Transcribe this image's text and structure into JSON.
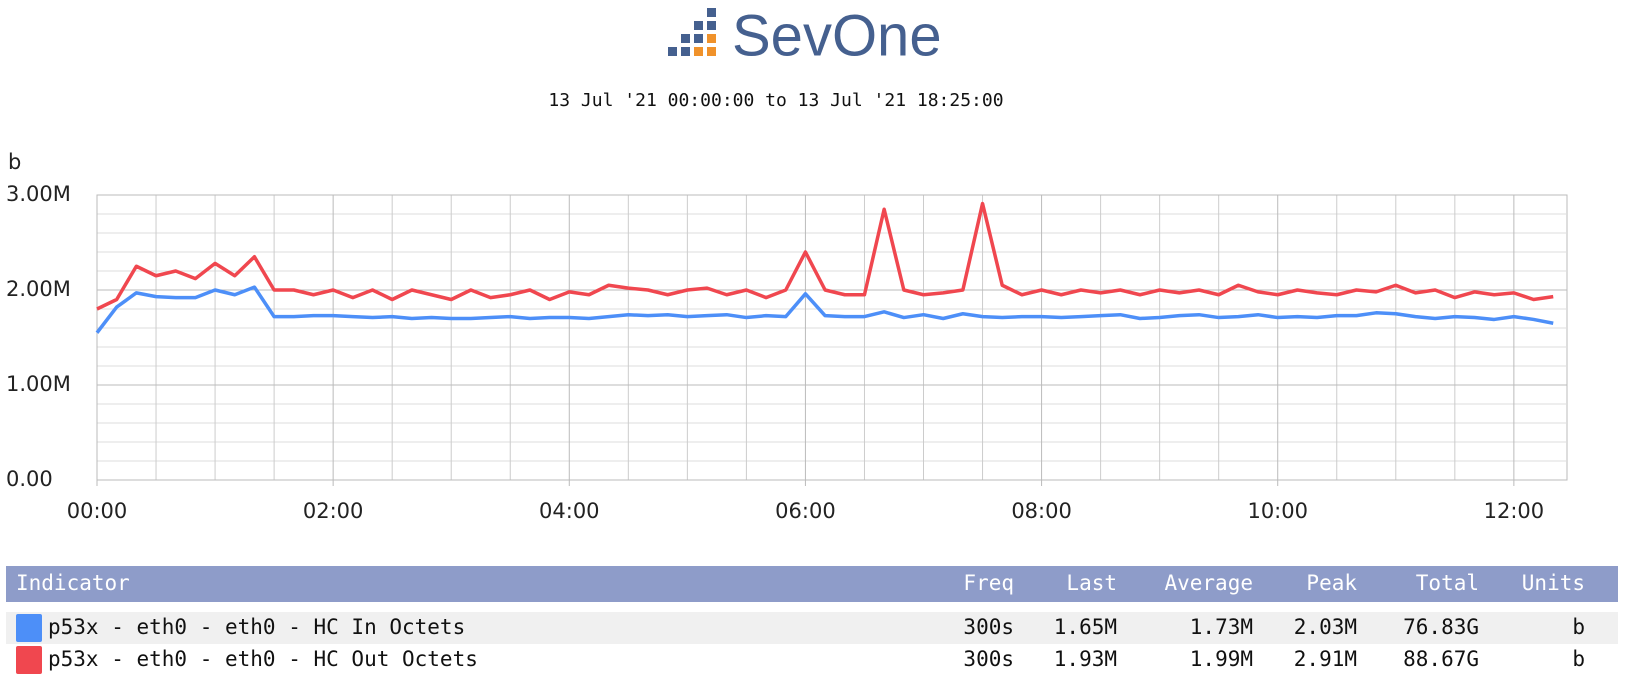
{
  "chart_data": {
    "type": "line",
    "title": "SevOne",
    "subtitle": "13 Jul '21 00:00:00 to 13 Jul '21 18:25:00",
    "y_label": "b",
    "x": [
      0,
      10,
      20,
      30,
      40,
      50,
      60,
      70,
      80,
      90,
      100,
      110,
      120,
      130,
      140,
      150,
      160,
      170,
      180,
      190,
      200,
      210,
      220,
      230,
      240,
      250,
      260,
      270,
      280,
      290,
      300,
      310,
      320,
      330,
      340,
      350,
      360,
      370,
      380,
      390,
      400,
      410,
      420,
      430,
      440,
      450,
      460,
      470,
      480,
      490,
      500,
      510,
      520,
      530,
      540,
      550,
      560,
      570,
      580,
      590,
      600,
      610,
      620,
      630,
      640,
      650,
      660,
      670,
      680,
      690,
      700,
      710,
      720,
      730,
      740
    ],
    "xlim": [
      0,
      747
    ],
    "xticks": [
      {
        "value": 0,
        "label": "00:00"
      },
      {
        "value": 120,
        "label": "02:00"
      },
      {
        "value": 240,
        "label": "04:00"
      },
      {
        "value": 360,
        "label": "06:00"
      },
      {
        "value": 480,
        "label": "08:00"
      },
      {
        "value": 600,
        "label": "10:00"
      },
      {
        "value": 720,
        "label": "12:00"
      }
    ],
    "x_minor_ticks": [
      30,
      60,
      90,
      150,
      180,
      210,
      270,
      300,
      330,
      390,
      420,
      450,
      510,
      540,
      570,
      630,
      660,
      690
    ],
    "ylim": [
      0,
      3000000
    ],
    "yticks": [
      {
        "value": 0,
        "label": "0.00"
      },
      {
        "value": 1000000,
        "label": "1.00M"
      },
      {
        "value": 2000000,
        "label": "2.00M"
      },
      {
        "value": 3000000,
        "label": "3.00M"
      }
    ],
    "y_minor_ticks": [
      200000,
      400000,
      600000,
      800000,
      1200000,
      1400000,
      1600000,
      1800000,
      2200000,
      2400000,
      2600000,
      2800000
    ],
    "grid": true,
    "series": [
      {
        "name": "p53x - eth0 - eth0 - HC In Octets",
        "color": "#4d8ff8",
        "values": [
          1550000,
          1820000,
          1970000,
          1930000,
          1920000,
          1920000,
          2000000,
          1950000,
          2030000,
          1720000,
          1720000,
          1730000,
          1730000,
          1720000,
          1710000,
          1720000,
          1700000,
          1710000,
          1700000,
          1700000,
          1710000,
          1720000,
          1700000,
          1710000,
          1710000,
          1700000,
          1720000,
          1740000,
          1730000,
          1740000,
          1720000,
          1730000,
          1740000,
          1710000,
          1730000,
          1720000,
          1960000,
          1730000,
          1720000,
          1720000,
          1770000,
          1710000,
          1740000,
          1700000,
          1750000,
          1720000,
          1710000,
          1720000,
          1720000,
          1710000,
          1720000,
          1730000,
          1740000,
          1700000,
          1710000,
          1730000,
          1740000,
          1710000,
          1720000,
          1740000,
          1710000,
          1720000,
          1710000,
          1730000,
          1730000,
          1760000,
          1750000,
          1720000,
          1700000,
          1720000,
          1710000,
          1690000,
          1720000,
          1690000,
          1650000
        ],
        "stats": [
          "300s",
          "1.65M",
          "1.73M",
          "2.03M",
          "76.83G",
          "b"
        ]
      },
      {
        "name": "p53x - eth0 - eth0 - HC Out Octets",
        "color": "#f0474f",
        "values": [
          1800000,
          1900000,
          2250000,
          2150000,
          2200000,
          2120000,
          2280000,
          2150000,
          2350000,
          2000000,
          2000000,
          1950000,
          2000000,
          1920000,
          2000000,
          1900000,
          2000000,
          1950000,
          1900000,
          2000000,
          1920000,
          1950000,
          2000000,
          1900000,
          1980000,
          1950000,
          2050000,
          2020000,
          2000000,
          1950000,
          2000000,
          2020000,
          1950000,
          2000000,
          1920000,
          2000000,
          2400000,
          2000000,
          1950000,
          1950000,
          2850000,
          2000000,
          1950000,
          1970000,
          2000000,
          2910000,
          2050000,
          1950000,
          2000000,
          1950000,
          2000000,
          1970000,
          2000000,
          1950000,
          2000000,
          1970000,
          2000000,
          1950000,
          2050000,
          1980000,
          1950000,
          2000000,
          1970000,
          1950000,
          2000000,
          1980000,
          2050000,
          1970000,
          2000000,
          1920000,
          1980000,
          1950000,
          1970000,
          1900000,
          1930000
        ],
        "stats": [
          "300s",
          "1.93M",
          "1.99M",
          "2.91M",
          "88.67G",
          "b"
        ]
      }
    ],
    "legend_columns": [
      "Indicator",
      "Freq",
      "Last",
      "Average",
      "Peak",
      "Total",
      "Units"
    ]
  }
}
